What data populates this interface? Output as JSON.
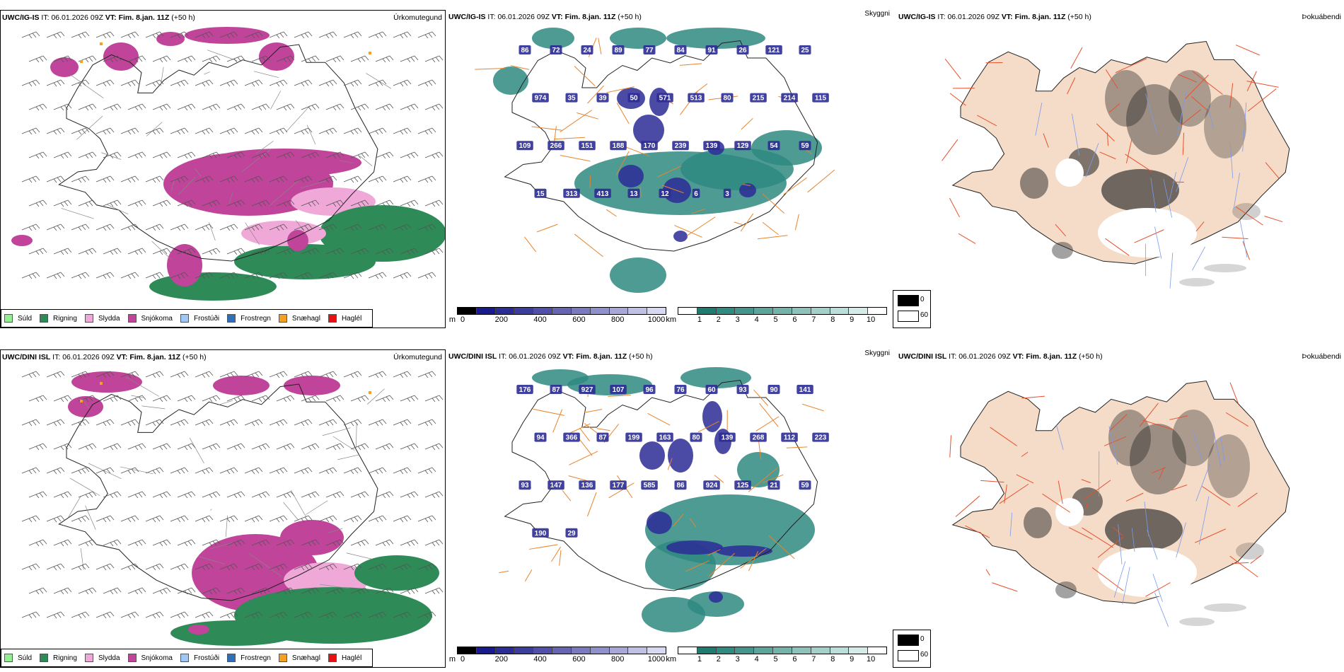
{
  "rows": [
    {
      "model": "UWC/IG-IS",
      "it_label": "IT:",
      "it_value": "06.01.2026 09Z",
      "vt_label": "VT:",
      "vt_value": "Fim. 8.jan. 11Z",
      "lead": "(+50 h)",
      "visibility_labels": [
        "86",
        "72",
        "24",
        "89",
        "77",
        "84",
        "91",
        "26",
        "121",
        "25",
        "974",
        "35",
        "39",
        "50",
        "571",
        "513",
        "80",
        "215",
        "214",
        "115",
        "109",
        "266",
        "151",
        "188",
        "170",
        "239",
        "139",
        "129",
        "54",
        "59",
        "15",
        "313",
        "413",
        "13",
        "12",
        "6",
        "3"
      ]
    },
    {
      "model": "UWC/DINI ISL",
      "it_label": "IT:",
      "it_value": "06.01.2026 09Z",
      "vt_label": "VT:",
      "vt_value": "Fim. 8.jan. 11Z",
      "lead": "(+50 h)",
      "visibility_labels": [
        "176",
        "87",
        "927",
        "107",
        "96",
        "76",
        "60",
        "93",
        "90",
        "141",
        "94",
        "366",
        "87",
        "199",
        "163",
        "80",
        "139",
        "268",
        "112",
        "223",
        "93",
        "147",
        "136",
        "177",
        "585",
        "86",
        "924",
        "125",
        "21",
        "59",
        "190",
        "29"
      ]
    }
  ],
  "panel_titles": {
    "precip": "Úrkomutegund",
    "visibility": "Skyggni",
    "fog": "Þokuábendi"
  },
  "precip_legend": [
    {
      "label": "Súld",
      "color": "#8ef08e"
    },
    {
      "label": "Rigning",
      "color": "#2e8b57"
    },
    {
      "label": "Slydda",
      "color": "#f0a8d8"
    },
    {
      "label": "Snjókoma",
      "color": "#c0449a"
    },
    {
      "label": "Frostúði",
      "color": "#9ec8f5"
    },
    {
      "label": "Frostregn",
      "color": "#2f6fb8"
    },
    {
      "label": "Snæhagl",
      "color": "#f5a020"
    },
    {
      "label": "Haglél",
      "color": "#e81010"
    }
  ],
  "ceiling_colorbar": {
    "unit": "m",
    "ticks": [
      "0",
      "200",
      "400",
      "600",
      "800",
      "1000"
    ],
    "colors": [
      "#000000",
      "#1a1a8c",
      "#2c2c96",
      "#3d3da0",
      "#5050aa",
      "#6565b4",
      "#7a7ac0",
      "#9090cc",
      "#a8a8d8",
      "#c0c0e6",
      "#d8d8f2"
    ]
  },
  "visibility_colorbar": {
    "unit": "km",
    "ticks": [
      "1",
      "2",
      "3",
      "4",
      "5",
      "6",
      "7",
      "8",
      "9",
      "10"
    ],
    "colors": [
      "#1f7a70",
      "#2f8a80",
      "#44968c",
      "#5ca59b",
      "#74b3aa",
      "#8cc2ba",
      "#a4d0ca",
      "#bcdeda",
      "#d4ebe8",
      "#ffffff"
    ]
  },
  "fog_legend": [
    {
      "label": "0",
      "color": "#000000"
    },
    {
      "label": "60",
      "color": "#ffffff"
    }
  ],
  "colors": {
    "snow": "#c0449a",
    "sleet": "#f0a8d8",
    "rain": "#2e8b57",
    "teal": "#2f8a80",
    "ceiling": "#2c2c96",
    "road": "#e8842c",
    "fog_land": "#f5dcc8",
    "fog_road": "#e8502c",
    "river": "#7a9af0"
  }
}
